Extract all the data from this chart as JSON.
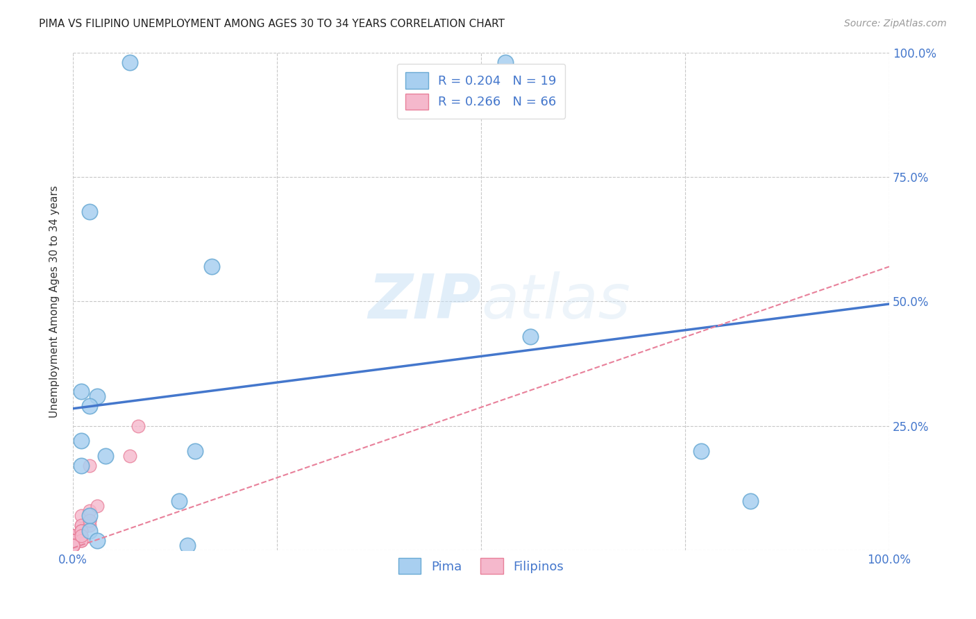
{
  "title": "PIMA VS FILIPINO UNEMPLOYMENT AMONG AGES 30 TO 34 YEARS CORRELATION CHART",
  "source": "Source: ZipAtlas.com",
  "ylabel": "Unemployment Among Ages 30 to 34 years",
  "xlim": [
    0,
    1
  ],
  "ylim": [
    0,
    1
  ],
  "xticks": [
    0,
    0.25,
    0.5,
    0.75,
    1.0
  ],
  "yticks": [
    0,
    0.25,
    0.5,
    0.75,
    1.0
  ],
  "xticklabels": [
    "0.0%",
    "",
    "",
    "",
    "100.0%"
  ],
  "yticklabels_right": [
    "",
    "25.0%",
    "50.0%",
    "75.0%",
    "100.0%"
  ],
  "background_color": "#ffffff",
  "grid_color": "#c8c8c8",
  "pima_color": "#a8cff0",
  "pima_edge_color": "#6aaad4",
  "filipinos_color": "#f5b8cc",
  "filipinos_edge_color": "#e8809a",
  "pima_R": 0.204,
  "pima_N": 19,
  "filipinos_R": 0.266,
  "filipinos_N": 66,
  "pima_line_color": "#4477cc",
  "filipinos_line_color": "#e8809a",
  "pima_scatter_x": [
    0.07,
    0.53,
    0.02,
    0.01,
    0.03,
    0.02,
    0.01,
    0.15,
    0.04,
    0.01,
    0.56,
    0.83,
    0.77,
    0.17,
    0.02,
    0.13,
    0.02,
    0.03,
    0.14
  ],
  "pima_scatter_y": [
    0.98,
    0.98,
    0.68,
    0.32,
    0.31,
    0.29,
    0.22,
    0.2,
    0.19,
    0.17,
    0.43,
    0.1,
    0.2,
    0.57,
    0.07,
    0.1,
    0.04,
    0.02,
    0.01
  ],
  "filipinos_scatter_x": [
    0.0,
    0.0,
    0.01,
    0.0,
    0.01,
    0.02,
    0.0,
    0.0,
    0.01,
    0.02,
    0.01,
    0.0,
    0.0,
    0.0,
    0.01,
    0.0,
    0.0,
    0.0,
    0.01,
    0.02,
    0.03,
    0.0,
    0.0,
    0.02,
    0.01,
    0.0,
    0.01,
    0.0,
    0.0,
    0.0,
    0.0,
    0.0,
    0.0,
    0.0,
    0.0,
    0.0,
    0.0,
    0.0,
    0.0,
    0.01,
    0.0,
    0.0,
    0.0,
    0.0,
    0.01,
    0.0,
    0.0,
    0.0,
    0.0,
    0.0,
    0.0,
    0.0,
    0.0,
    0.0,
    0.0,
    0.0,
    0.0,
    0.0,
    0.01,
    0.0,
    0.0,
    0.0,
    0.01,
    0.07,
    0.02,
    0.08
  ],
  "filipinos_scatter_y": [
    0.03,
    0.02,
    0.04,
    0.01,
    0.05,
    0.06,
    0.02,
    0.03,
    0.07,
    0.08,
    0.04,
    0.01,
    0.02,
    0.01,
    0.05,
    0.02,
    0.01,
    0.03,
    0.04,
    0.05,
    0.09,
    0.01,
    0.02,
    0.06,
    0.03,
    0.01,
    0.02,
    0.01,
    0.02,
    0.01,
    0.01,
    0.02,
    0.01,
    0.01,
    0.02,
    0.01,
    0.01,
    0.01,
    0.01,
    0.03,
    0.01,
    0.02,
    0.01,
    0.01,
    0.04,
    0.01,
    0.01,
    0.01,
    0.01,
    0.01,
    0.01,
    0.02,
    0.01,
    0.01,
    0.01,
    0.01,
    0.01,
    0.01,
    0.02,
    0.01,
    0.01,
    0.01,
    0.03,
    0.19,
    0.17,
    0.25
  ],
  "legend_pima_label": "Pima",
  "legend_filipinos_label": "Filipinos",
  "pima_line_x0": 0.0,
  "pima_line_y0": 0.285,
  "pima_line_x1": 1.0,
  "pima_line_y1": 0.495,
  "filipinos_line_x0": 0.0,
  "filipinos_line_y0": 0.005,
  "filipinos_line_x1": 1.0,
  "filipinos_line_y1": 0.57
}
